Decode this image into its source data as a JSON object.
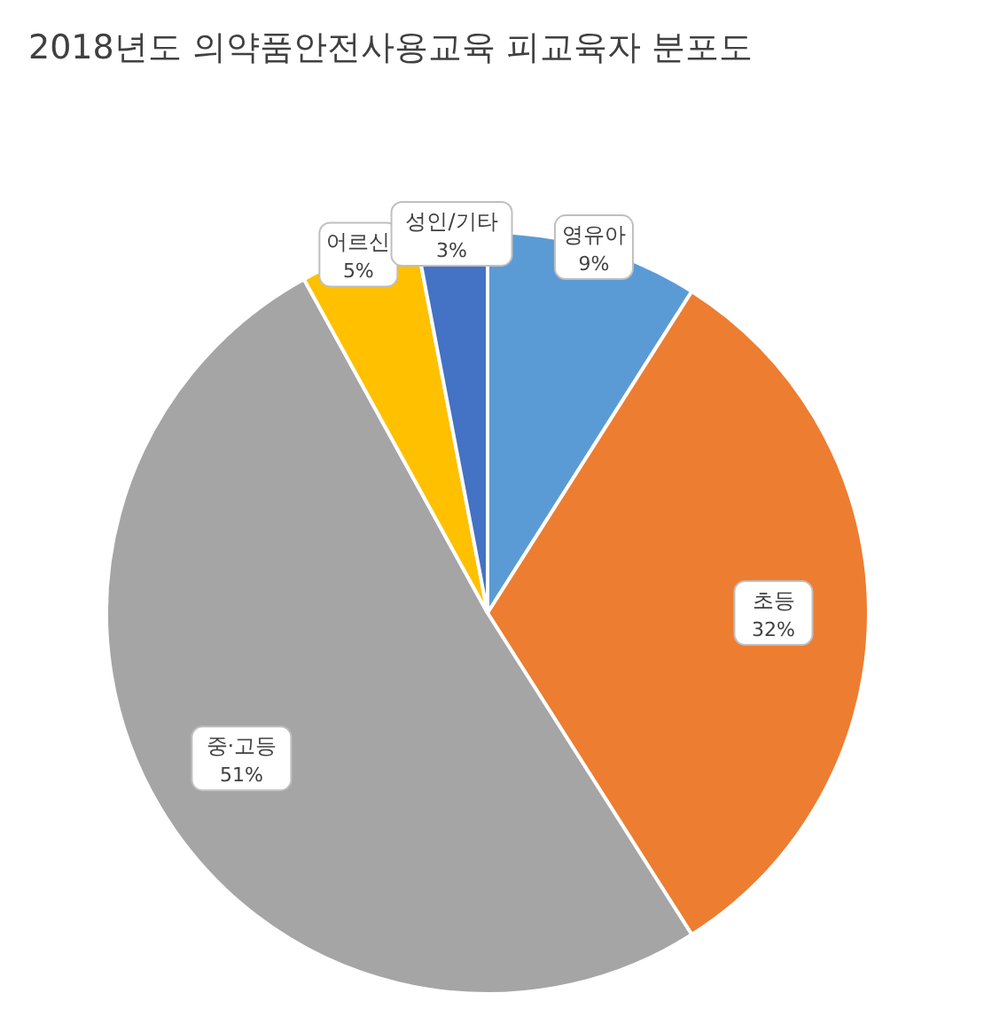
{
  "chart_data": {
    "type": "pie",
    "title": "2018년도 의약품안전사용교육 피교육자 분포도",
    "categories": [
      "영유아",
      "초등",
      "중·고등",
      "어르신",
      "성인/기타"
    ],
    "values": [
      9,
      32,
      51,
      5,
      3
    ],
    "colors": [
      "#5b9bd5",
      "#ed7d31",
      "#a5a5a5",
      "#ffc000",
      "#4472c4"
    ],
    "value_labels": [
      "9%",
      "32%",
      "51%",
      "5%",
      "3%"
    ],
    "legend": false
  }
}
